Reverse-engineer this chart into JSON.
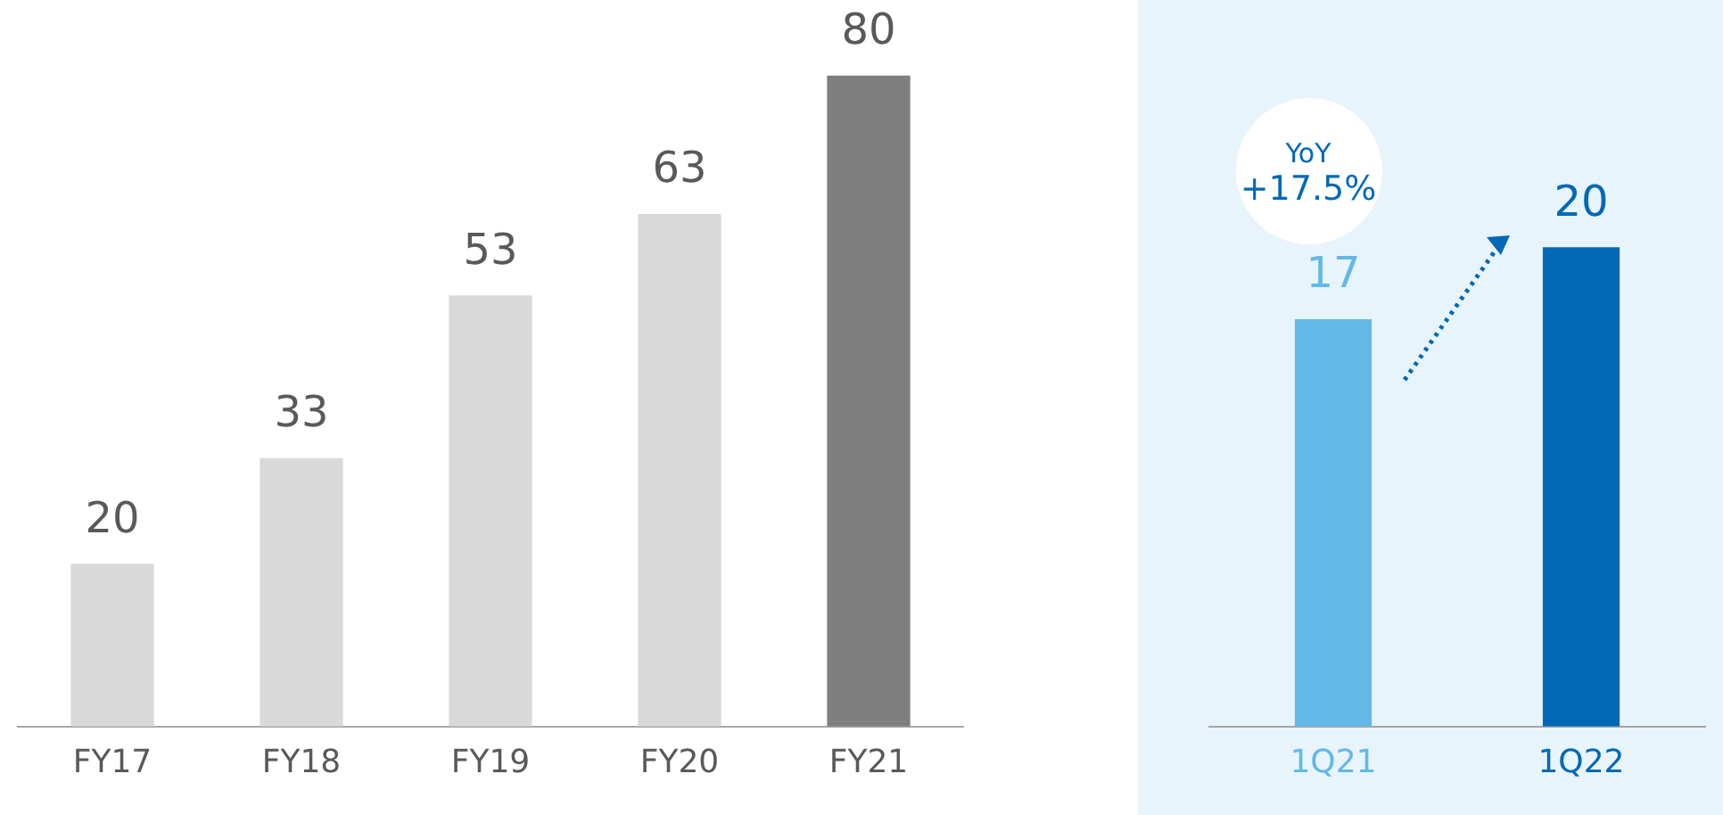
{
  "chart_data": [
    {
      "type": "bar",
      "categories": [
        "FY17",
        "FY18",
        "FY19",
        "FY20",
        "FY21"
      ],
      "values": [
        20,
        33,
        53,
        63,
        80
      ],
      "colors": [
        "#d9d9d9",
        "#d9d9d9",
        "#d9d9d9",
        "#d9d9d9",
        "#7f7f7f"
      ],
      "data_labels": true,
      "grid": false,
      "legend": false,
      "tick_labels": "x"
    },
    {
      "type": "bar",
      "categories": [
        "1Q21",
        "1Q22"
      ],
      "values": [
        17,
        20
      ],
      "colors": [
        "#63b8e8",
        "#0068b4"
      ],
      "data_labels": true,
      "grid": false,
      "legend": false,
      "tick_labels": "x",
      "annotations": [
        "YoY +17.5%"
      ]
    }
  ]
}
